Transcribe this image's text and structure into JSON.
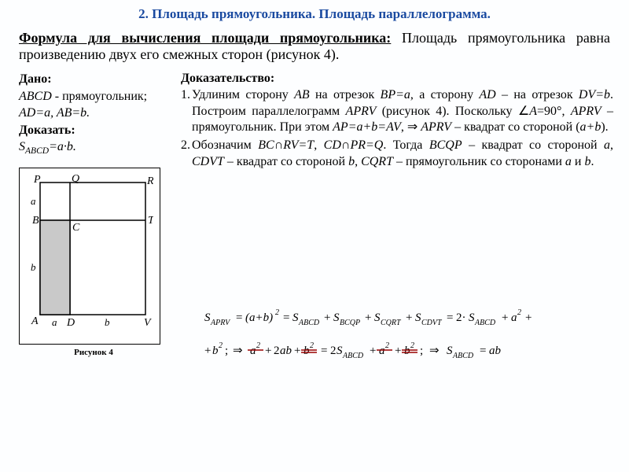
{
  "header": "2. Площадь прямоугольника. Площадь параллелограмма.",
  "subtitle_under": "Формула для вычисления площади прямоугольника:",
  "subtitle_rest": " Площадь прямоугольника равна произведению двух его смежных сторон (рисунок 4).",
  "given": {
    "title": "Дано:",
    "line1_a": "ABCD",
    "line1_b": " - прямоугольник;",
    "line2": "AD=a, AB=b.",
    "prove_title": "Доказать:",
    "prove_body": "S<sub>ABCD</sub>=a·b."
  },
  "proof": {
    "title": "Доказательство:",
    "item1": "Удлиним сторону <span class=\"it\">AB</span> на отрезок <span class=\"it\">BP=a</span>, а сторону <span class=\"it\">AD</span> – на отрезок <span class=\"it\">DV=b</span>. Построим параллелограмм <span class=\"it\">APRV</span> (рисунок 4). Поскольку ∠<span class=\"it\">A</span>=90°, <span class=\"it\">APRV</span> – прямоугольник. При этом <span class=\"it\">AP=a+b=AV</span>, ⇒ <span class=\"it\">APRV</span> – квадрат со стороной (<span class=\"it\">a+b</span>).",
    "item2": "Обозначим <span class=\"it\">BC</span>∩<span class=\"it\">RV=T</span>, <span class=\"it\">CD</span>∩<span class=\"it\">PR=Q</span>. Тогда <span class=\"it\">BCQP</span> – квадрат со стороной <span class=\"it\">a</span>, <span class=\"it\">CDVT</span> – квадрат со стороной <span class=\"it\">b</span>, <span class=\"it\">CQRT</span> – прямоугольник со сторонами <span class=\"it\">a</span> и <span class=\"it\">b</span>."
  },
  "figure": {
    "caption": "Рисунок 4",
    "labels": {
      "P": "P",
      "Q": "Q",
      "R": "R",
      "B": "B",
      "C": "C",
      "T": "T",
      "A": "A",
      "D": "D",
      "V": "V",
      "a_left": "a",
      "b_left": "b",
      "a_bot": "a",
      "b_bot": "b"
    },
    "colors": {
      "stroke": "#000000",
      "fill": "#c9c9c9",
      "strike": "#990000"
    }
  },
  "formulas": {
    "line1": "S<sub>APRV</sub> = (a+b)<sup>2</sup> = S<sub>ABCD</sub> + S<sub>BCQP</sub> + S<sub>CQRT</sub> + S<sub>CDVT</sub> = 2·S<sub>ABCD</sub> + a<sup>2</sup> +",
    "line2": "+b<sup>2</sup>; ⇒ a<sup>2</sup> + 2ab + b<sup>2</sup> = 2S<sub>ABCD</sub> + a<sup>2</sup> + b<sup>2</sup>; ⇒ S<sub>ABCD</sub> = ab"
  }
}
